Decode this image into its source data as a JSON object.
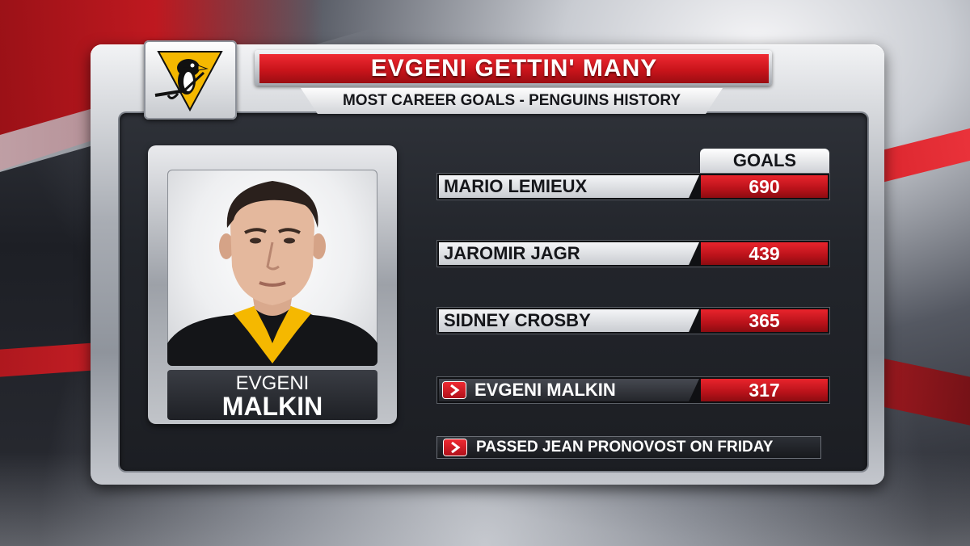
{
  "graphic": {
    "title": "EVGENI GETTIN' MANY",
    "subtitle": "MOST CAREER GOALS - PENGUINS HISTORY",
    "team_logo": "pittsburgh-penguins-logo",
    "colors": {
      "accent_red": "#c9141b",
      "team_gold": "#f5b800",
      "panel_dark": "#22252b"
    }
  },
  "player": {
    "first_name": "EVGENI",
    "last_name": "MALKIN"
  },
  "table": {
    "column_header": "GOALS",
    "rows": [
      {
        "name": "MARIO LEMIEUX",
        "goals": "690",
        "highlighted": false
      },
      {
        "name": "JAROMIR JAGR",
        "goals": "439",
        "highlighted": false
      },
      {
        "name": "SIDNEY CROSBY",
        "goals": "365",
        "highlighted": false
      },
      {
        "name": "EVGENI MALKIN",
        "goals": "317",
        "highlighted": true,
        "icon": "chevron-right-icon"
      }
    ]
  },
  "note": {
    "icon": "chevron-right-icon",
    "text": "PASSED JEAN PRONOVOST ON FRIDAY"
  }
}
